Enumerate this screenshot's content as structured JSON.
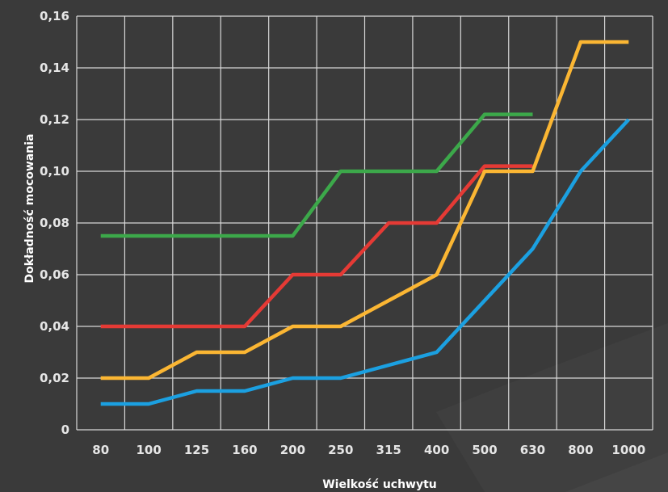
{
  "chart_data": {
    "type": "line",
    "title": "",
    "xlabel": "Wielkość uchwytu",
    "ylabel": "Dokładność mocowania",
    "categories": [
      "80",
      "100",
      "125",
      "160",
      "200",
      "250",
      "315",
      "400",
      "500",
      "630",
      "800",
      "1000"
    ],
    "y_ticks": [
      "0",
      "0,02",
      "0,04",
      "0,06",
      "0,08",
      "0,10",
      "0,12",
      "0,14",
      "0,16"
    ],
    "ylim": [
      0,
      0.16
    ],
    "grid": true,
    "legend": "none",
    "series": [
      {
        "color": "#3ca84a",
        "values": [
          0.075,
          0.075,
          0.075,
          0.075,
          0.075,
          0.1,
          0.1,
          0.1,
          0.122,
          0.122,
          null,
          null
        ]
      },
      {
        "color": "#e53a35",
        "values": [
          0.04,
          0.04,
          0.04,
          0.04,
          0.06,
          0.06,
          0.08,
          0.08,
          0.102,
          0.102,
          null,
          null
        ]
      },
      {
        "color": "#fbb633",
        "values": [
          0.02,
          0.02,
          0.03,
          0.03,
          0.04,
          0.04,
          0.05,
          0.06,
          0.1,
          0.1,
          0.15,
          0.15
        ]
      },
      {
        "color": "#1ba0e1",
        "values": [
          0.01,
          0.01,
          0.015,
          0.015,
          0.02,
          0.02,
          0.025,
          0.03,
          0.05,
          0.07,
          0.1,
          0.12
        ]
      }
    ]
  }
}
